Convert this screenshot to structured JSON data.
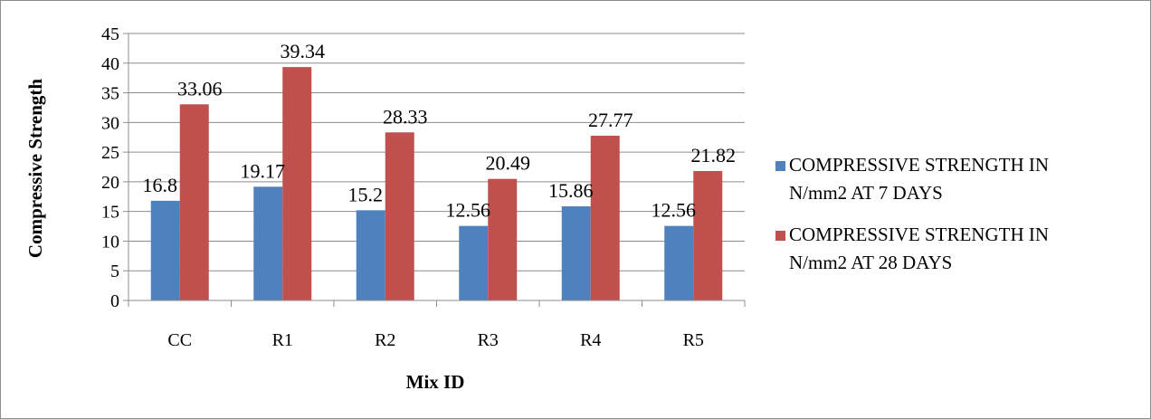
{
  "chart_data": {
    "type": "bar",
    "title": "",
    "xlabel": "Mix ID",
    "ylabel": "Compressive Strength",
    "categories": [
      "CC",
      "R1",
      "R2",
      "R3",
      "R4",
      "R5"
    ],
    "series": [
      {
        "name": "COMPRESSIVE STRENGTH IN N/mm2 AT 7 DAYS",
        "name_lines": [
          "COMPRESSIVE STRENGTH IN",
          "N/mm2 AT 7 DAYS"
        ],
        "values": [
          16.8,
          19.17,
          15.2,
          12.56,
          15.86,
          12.56
        ],
        "color": "#4f81bd"
      },
      {
        "name": "COMPRESSIVE STRENGTH IN N/mm2 AT 28 DAYS",
        "name_lines": [
          "COMPRESSIVE STRENGTH IN",
          "N/mm2 AT 28 DAYS"
        ],
        "values": [
          33.06,
          39.34,
          28.33,
          20.49,
          27.77,
          21.82
        ],
        "color": "#c0504d"
      }
    ],
    "ylim": [
      0,
      45
    ],
    "yticks": [
      0,
      5,
      10,
      15,
      20,
      25,
      30,
      35,
      40,
      45
    ],
    "grid": true,
    "legend_position": "right",
    "data_labels": true
  }
}
